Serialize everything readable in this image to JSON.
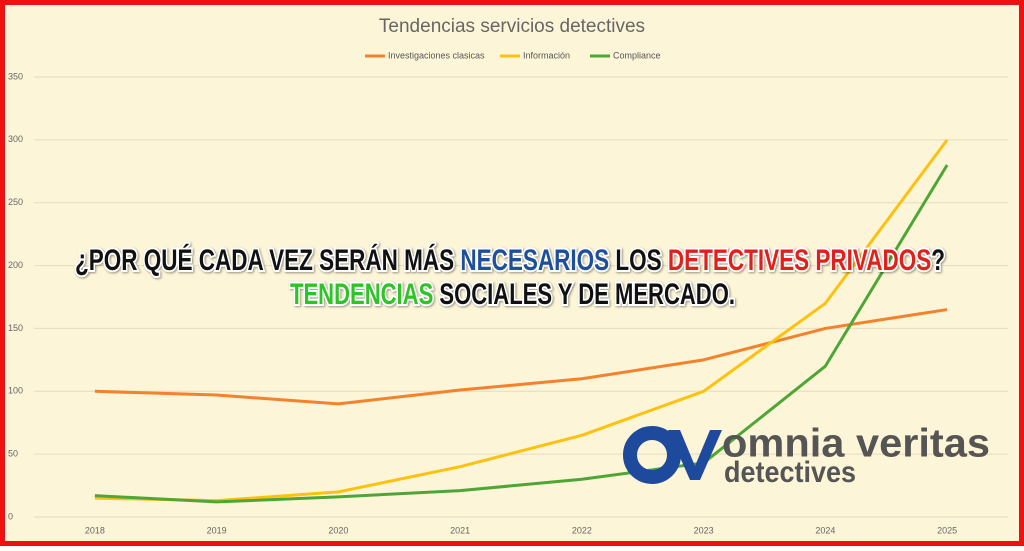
{
  "chart_data": {
    "type": "line",
    "title": "Tendencias servicios detectives",
    "categories": [
      "2018",
      "2019",
      "2020",
      "2021",
      "2022",
      "2023",
      "2024",
      "2025"
    ],
    "series": [
      {
        "name": "Investigaciones clasicas",
        "color": "#f4812b",
        "values": [
          100,
          97,
          90,
          101,
          110,
          125,
          150,
          165
        ]
      },
      {
        "name": "Información",
        "color": "#fcc20f",
        "values": [
          15,
          13,
          20,
          40,
          65,
          100,
          170,
          300
        ]
      },
      {
        "name": "Compliance",
        "color": "#4ea636",
        "values": [
          17,
          12,
          16,
          21,
          30,
          43,
          120,
          280
        ]
      }
    ],
    "ylim": [
      0,
      350
    ],
    "yticks": [
      0,
      50,
      100,
      150,
      200,
      250,
      300,
      350
    ],
    "grid": true,
    "legend": "top"
  },
  "headline": {
    "line1": [
      {
        "text": "¿POR QUÉ CADA VEZ SERÁN MÁS ",
        "color": "#111111"
      },
      {
        "text": "NECESARIOS",
        "color": "#1d4f9c"
      },
      {
        "text": " LOS ",
        "color": "#111111"
      },
      {
        "text": "DETECTIVES PRIVADOS",
        "color": "#e0211b"
      },
      {
        "text": "?",
        "color": "#111111"
      }
    ],
    "line2": [
      {
        "text": "TENDENCIAS",
        "color": "#2fc327"
      },
      {
        "text": " SOCIALES Y DE MERCADO.",
        "color": "#111111"
      }
    ]
  },
  "logo": {
    "name": "omnia veritas",
    "tagline": "detectives"
  }
}
